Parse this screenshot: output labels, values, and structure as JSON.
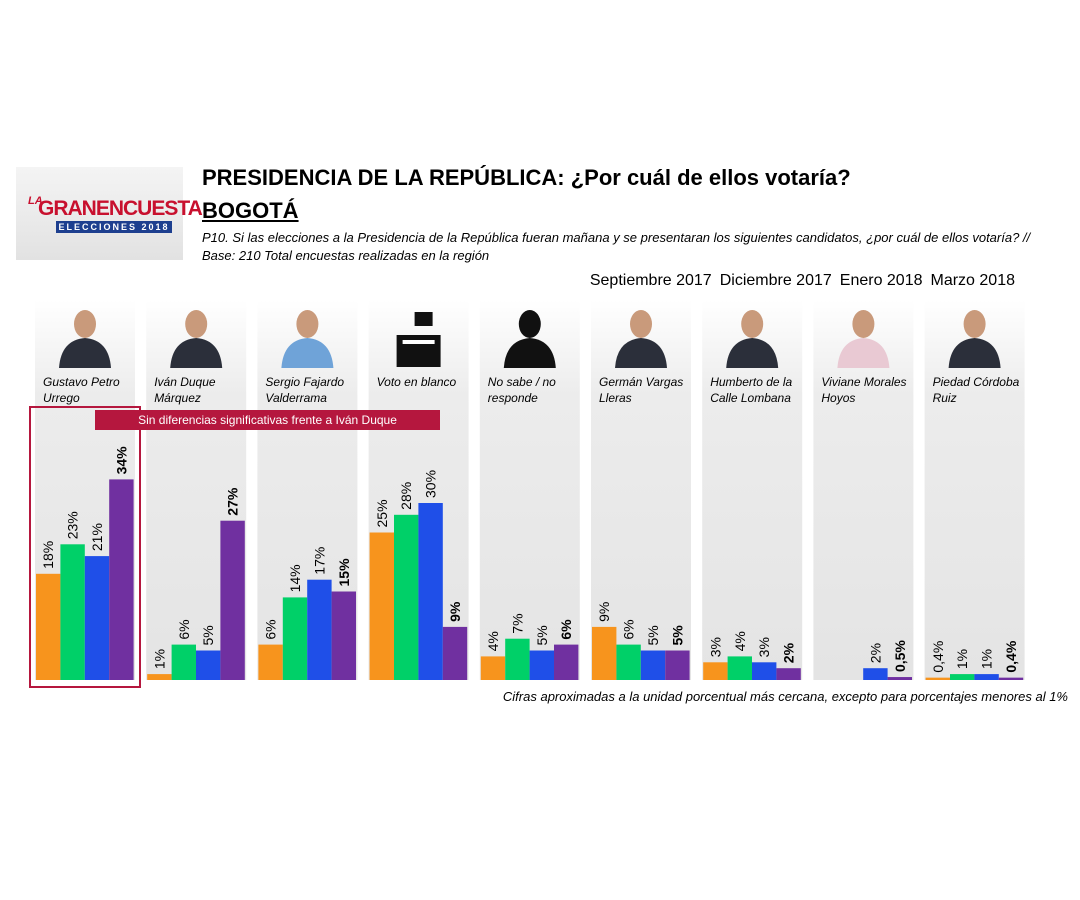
{
  "logo": {
    "small": "LA",
    "main": "GRANENCUESTA",
    "band": "ELECCIONES 2018"
  },
  "chart_data": {
    "type": "bar",
    "title": "PRESIDENCIA DE LA REPÚBLICA: ¿Por cuál de ellos votaría?",
    "subtitle": "BOGOTÁ",
    "question": "P10. Si las elecciones a la Presidencia de la República fueran mañana y se presentaran los siguientes candidatos, ¿por cuál de ellos votaría?  // Base: 210 Total encuestas realizadas en la región",
    "annotation": "Sin diferencias significativas frente a Iván Duque",
    "footnote": "Cifras aproximadas a la unidad porcentual más cercana, excepto para porcentajes menores al 1%",
    "categories": [
      "Gustavo Petro Urrego",
      "Iván Duque Márquez",
      "Sergio Fajardo Valderrama",
      "Voto en blanco",
      "No sabe / no responde",
      "Germán Vargas Lleras",
      "Humberto de la Calle Lombana",
      "Viviane Morales Hoyos",
      "Piedad Córdoba Ruiz"
    ],
    "series": [
      {
        "name": "Septiembre 2017",
        "color": "#f7941d",
        "values": [
          18,
          1,
          6,
          25,
          4,
          9,
          3,
          null,
          0.4
        ],
        "value_labels": [
          "18%",
          "1%",
          "6%",
          "25%",
          "4%",
          "9%",
          "3%",
          null,
          "0,4%"
        ]
      },
      {
        "name": "Diciembre 2017",
        "color": "#00d068",
        "values": [
          23,
          6,
          14,
          28,
          7,
          6,
          4,
          null,
          1
        ],
        "value_labels": [
          "23%",
          "6%",
          "14%",
          "28%",
          "7%",
          "6%",
          "4%",
          null,
          "1%"
        ]
      },
      {
        "name": "Enero 2018",
        "color": "#1f4fe8",
        "values": [
          21,
          5,
          17,
          30,
          5,
          5,
          3,
          2,
          1
        ],
        "value_labels": [
          "21%",
          "5%",
          "17%",
          "30%",
          "5%",
          "5%",
          "3%",
          "2%",
          "1%"
        ]
      },
      {
        "name": "Marzo 2018",
        "color": "#7030a0",
        "values": [
          34,
          27,
          15,
          9,
          6,
          5,
          2,
          0.5,
          0.4
        ],
        "value_labels": [
          "34%",
          "27%",
          "15%",
          "9%",
          "6%",
          "5%",
          "2%",
          "0,5%",
          "0,4%"
        ],
        "bold_labels": true
      }
    ]
  }
}
